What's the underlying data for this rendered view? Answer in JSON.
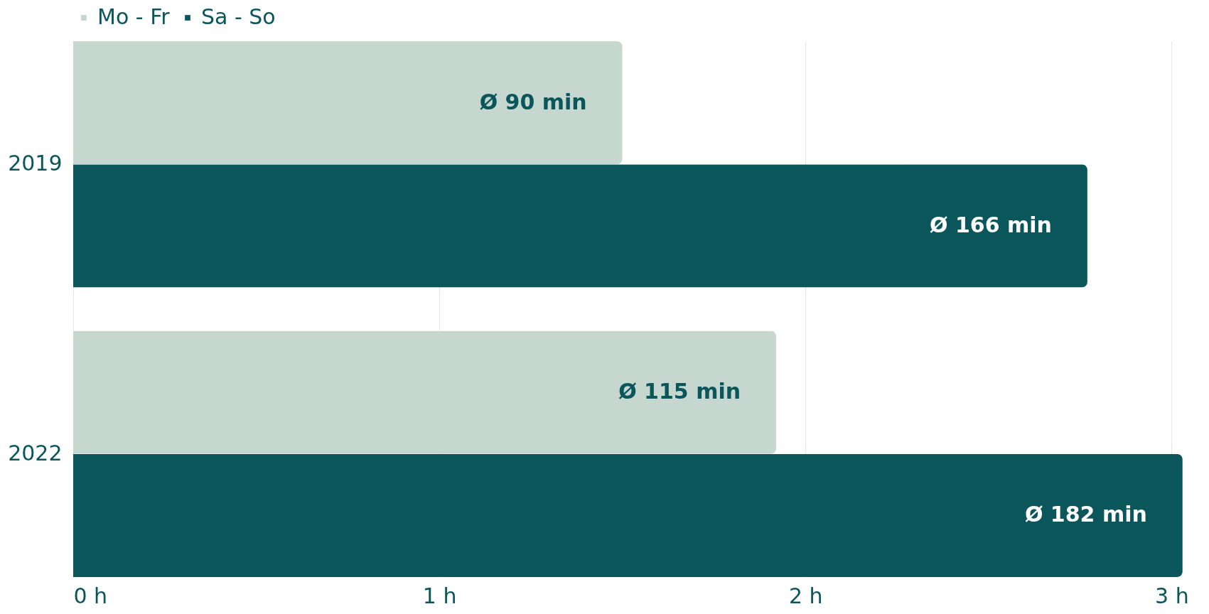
{
  "chart_data": {
    "type": "bar",
    "orientation": "horizontal",
    "categories": [
      "2019",
      "2022"
    ],
    "series": [
      {
        "name": "Mo - Fr",
        "color": "#c5d7cf",
        "values": [
          1.5,
          1.92
        ],
        "value_labels": [
          "Ø 90 min",
          "Ø 115 min"
        ]
      },
      {
        "name": "Sa - So",
        "color": "#0a565b",
        "values": [
          2.77,
          3.03
        ],
        "value_labels": [
          "Ø 166 min",
          "Ø 182 min"
        ]
      }
    ],
    "xlim": [
      0,
      3.04
    ],
    "xticks": [
      {
        "value": 0,
        "label": "0 h"
      },
      {
        "value": 1,
        "label": "1 h"
      },
      {
        "value": 2,
        "label": "2 h"
      },
      {
        "value": 3,
        "label": "3 h"
      }
    ],
    "grid": "x",
    "legend": "top"
  }
}
